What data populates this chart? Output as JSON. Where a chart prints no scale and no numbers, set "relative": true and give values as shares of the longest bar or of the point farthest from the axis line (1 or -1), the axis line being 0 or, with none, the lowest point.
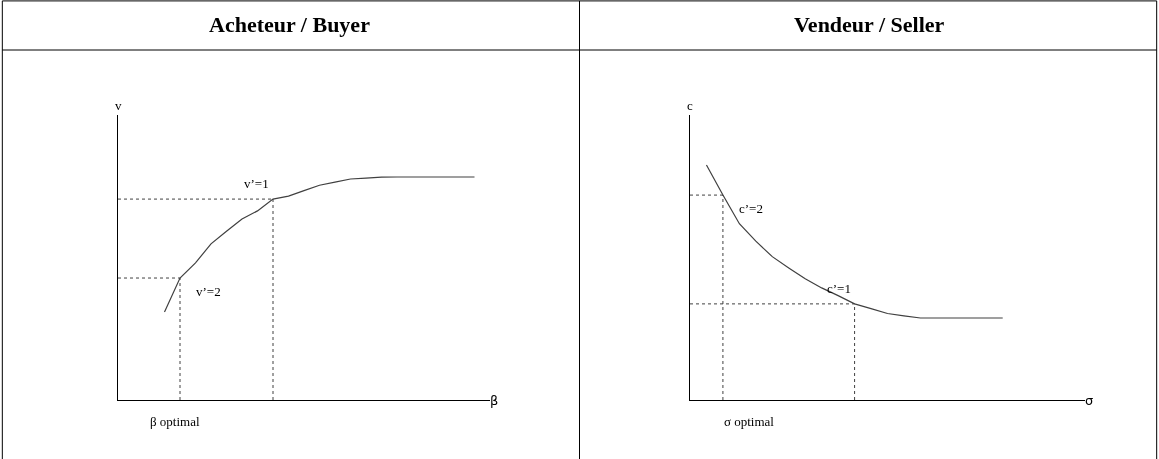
{
  "chart_data": [
    {
      "type": "line",
      "title": "Acheteur / Buyer",
      "xlabel": "β",
      "ylabel": "v",
      "relative": true,
      "marker": "none",
      "categories": [
        null,
        null,
        null,
        null,
        null,
        null,
        null,
        null,
        null,
        null,
        null,
        null,
        null,
        null,
        null,
        null,
        null,
        null,
        null,
        null,
        null,
        null,
        null,
        null,
        null
      ],
      "series": [
        {
          "color": "#404040",
          "values": [
            null,
            null,
            null,
            0.395,
            0.547,
            0.615,
            0.7,
            0.757,
            0.812,
            0.848,
            0.901,
            0.914,
            0.939,
            0.963,
            0.977,
            0.991,
            0.995,
            0.999,
            1,
            1,
            1,
            1,
            1,
            1,
            null
          ]
        }
      ],
      "ref_lines": [
        {
          "axis": "y",
          "value": 0.547,
          "color": "#404040",
          "line_style": "dotted"
        },
        {
          "axis": "y",
          "value": 0.901,
          "color": "#404040",
          "line_style": "dotted"
        }
      ],
      "annotations": [
        "v’=2",
        "v’=1",
        "β optimal"
      ]
    },
    {
      "type": "line",
      "title": "Vendeur / Seller",
      "xlabel": "σ",
      "ylabel": "c",
      "relative": true,
      "marker": "none",
      "categories": [
        null,
        null,
        null,
        null,
        null,
        null,
        null,
        null,
        null,
        null,
        null,
        null,
        null,
        null,
        null,
        null,
        null,
        null,
        null,
        null,
        null,
        null,
        null,
        null,
        null
      ],
      "series": [
        {
          "color": "#404040",
          "values": [
            null,
            1,
            0.872,
            0.75,
            0.676,
            0.61,
            0.562,
            0.516,
            0.477,
            0.444,
            0.409,
            0.389,
            0.368,
            0.358,
            0.349,
            0.349,
            0.349,
            0.349,
            0.349,
            0.349,
            null,
            null,
            null,
            null,
            null
          ]
        }
      ],
      "ref_lines": [
        {
          "axis": "y",
          "value": 0.872,
          "color": "#404040",
          "line_style": "dotted"
        },
        {
          "axis": "y",
          "value": 0.409,
          "color": "#404040",
          "line_style": "dotted"
        }
      ],
      "annotations": [
        "c’=2",
        "c’=1",
        "σ optimal"
      ]
    }
  ]
}
